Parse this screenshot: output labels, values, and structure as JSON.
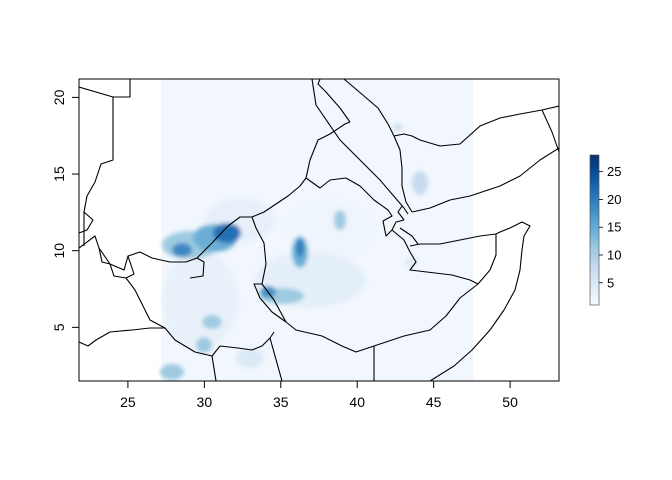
{
  "map": {
    "x_axis": {
      "ticks": [
        25,
        30,
        35,
        40,
        45,
        50
      ],
      "tick_labels": [
        "25",
        "30",
        "35",
        "40",
        "45",
        "50"
      ],
      "range": [
        21.8,
        53.2
      ],
      "label": ""
    },
    "y_axis": {
      "ticks": [
        5,
        10,
        15,
        20
      ],
      "tick_labels": [
        "5",
        "10",
        "15",
        "20"
      ],
      "range": [
        1.5,
        21.2
      ],
      "label": ""
    },
    "raster_extent": {
      "lon": [
        27.2,
        47.6
      ],
      "lat": [
        1.5,
        21.2
      ]
    },
    "colorbar": {
      "ticks": [
        5,
        10,
        15,
        20,
        25
      ],
      "tick_labels": [
        "5",
        "10",
        "15",
        "20",
        "25"
      ],
      "range": [
        1,
        28
      ],
      "colors": [
        "#f7fbff",
        "#deebf7",
        "#c6dbef",
        "#9ecae1",
        "#6baed6",
        "#4292c6",
        "#2171b5",
        "#08519c",
        "#08306b"
      ]
    },
    "colors": {
      "background_fill": "#f1f7fd",
      "border_line": "#000000"
    }
  }
}
